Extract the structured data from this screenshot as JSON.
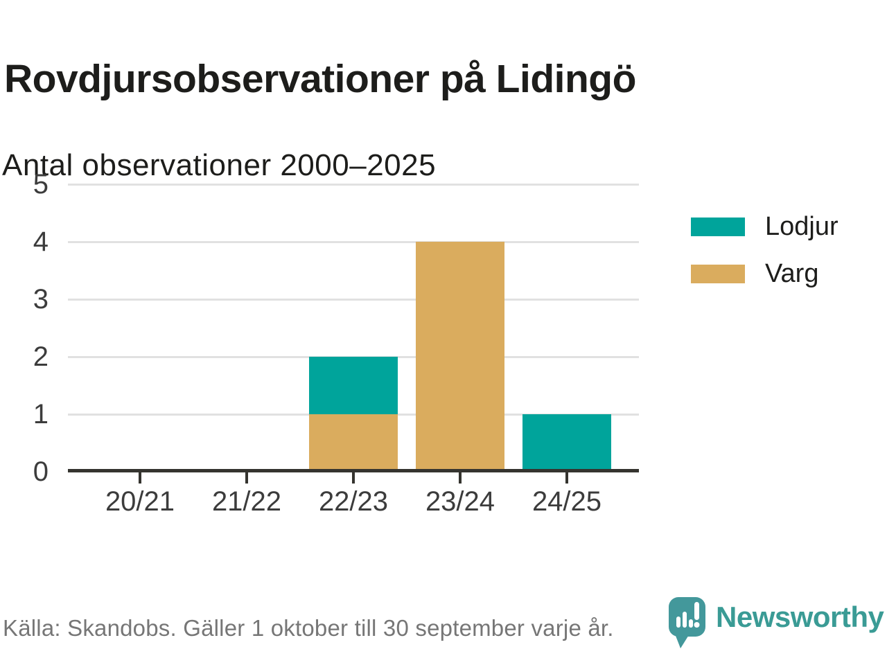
{
  "header": {
    "title": "Rovdjursobservationer på Lidingö",
    "subtitle": "Antal observationer 2000–2025"
  },
  "chart_data": {
    "type": "bar",
    "stacked": true,
    "title": "Rovdjursobservationer på Lidingö",
    "subtitle": "Antal observationer 2000–2025",
    "categories": [
      "20/21",
      "21/22",
      "22/23",
      "23/24",
      "24/25"
    ],
    "series": [
      {
        "name": "Lodjur",
        "color": "#00a49b",
        "values": [
          0,
          0,
          1,
          0,
          1
        ]
      },
      {
        "name": "Varg",
        "color": "#daac5e",
        "values": [
          0,
          0,
          1,
          4,
          0
        ]
      }
    ],
    "stack_order": [
      "Varg",
      "Lodjur"
    ],
    "ylim": [
      0,
      5
    ],
    "yticks": [
      0,
      1,
      2,
      3,
      4,
      5
    ],
    "xlabel": "",
    "ylabel": "",
    "grid": "horizontal",
    "legend_position": "right",
    "colors": {
      "gridline": "#e1e1e1",
      "axis": "#35342f",
      "tick_label": "#3c3c3c"
    }
  },
  "footer": {
    "source": "Källa: Skandobs. Gäller 1 oktober till 30 september varje år.",
    "brand": "Newsworthy",
    "brand_color": "#3a9b95",
    "brand_icon": "newsworthy-speech-bubble-chart-icon",
    "brand_icon_color": "#43989b"
  }
}
